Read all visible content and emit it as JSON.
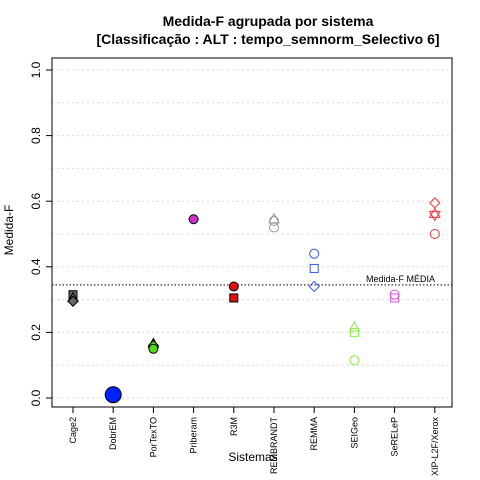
{
  "chart_data": {
    "type": "scatter",
    "title": "Medida-F agrupada por sistema",
    "subtitle": "[Classificação : ALT : tempo_semnorm_Selectivo 6]",
    "xlabel": "Sistemas",
    "ylabel": "Medida-F",
    "ylim": [
      0,
      1
    ],
    "yticks": [
      "0.0",
      "0.2",
      "0.4",
      "0.6",
      "0.8",
      "1.0"
    ],
    "grid": "horizontal dotted",
    "categories": [
      "Cage2",
      "DobrEM",
      "PorTexTO",
      "Priberam",
      "R3M",
      "REMBRANDT",
      "REMMA",
      "SEIGeo",
      "SeRELeP",
      "XIP-L2F/Xerox"
    ],
    "reference_line": {
      "label": "Medida-F MÉDIA",
      "value": 0.345
    },
    "points": [
      {
        "category": "Cage2",
        "value": 0.315,
        "shape": "square",
        "color": "#666666",
        "filled": true
      },
      {
        "category": "Cage2",
        "value": 0.305,
        "shape": "triangle",
        "color": "#666666",
        "filled": true
      },
      {
        "category": "Cage2",
        "value": 0.295,
        "shape": "diamond",
        "color": "#666666",
        "filled": true
      },
      {
        "category": "DobrEM",
        "value": 0.01,
        "shape": "circle-large",
        "color": "#0022ff",
        "filled": true
      },
      {
        "category": "PorTexTO",
        "value": 0.165,
        "shape": "triangle",
        "color": "#55dd11",
        "filled": true
      },
      {
        "category": "PorTexTO",
        "value": 0.16,
        "shape": "diamond",
        "color": "#55dd11",
        "filled": true
      },
      {
        "category": "PorTexTO",
        "value": 0.15,
        "shape": "circle",
        "color": "#55dd11",
        "filled": true
      },
      {
        "category": "Priberam",
        "value": 0.545,
        "shape": "circle",
        "color": "#cc33cc",
        "filled": true
      },
      {
        "category": "R3M",
        "value": 0.34,
        "shape": "circle",
        "color": "#dd1111",
        "filled": true
      },
      {
        "category": "R3M",
        "value": 0.305,
        "shape": "square",
        "color": "#dd1111",
        "filled": true
      },
      {
        "category": "REMBRANDT",
        "value": 0.545,
        "shape": "triangle",
        "color": "#999999",
        "filled": false
      },
      {
        "category": "REMBRANDT",
        "value": 0.54,
        "shape": "circle",
        "color": "#999999",
        "filled": false
      },
      {
        "category": "REMBRANDT",
        "value": 0.52,
        "shape": "circle",
        "color": "#999999",
        "filled": false
      },
      {
        "category": "REMMA",
        "value": 0.44,
        "shape": "circle",
        "color": "#3355ff",
        "filled": false
      },
      {
        "category": "REMMA",
        "value": 0.395,
        "shape": "square",
        "color": "#3355ff",
        "filled": false
      },
      {
        "category": "REMMA",
        "value": 0.34,
        "shape": "diamond",
        "color": "#3355ff",
        "filled": false
      },
      {
        "category": "SEIGeo",
        "value": 0.215,
        "shape": "triangle",
        "color": "#88ee44",
        "filled": false
      },
      {
        "category": "SEIGeo",
        "value": 0.2,
        "shape": "square",
        "color": "#88ee44",
        "filled": false
      },
      {
        "category": "SEIGeo",
        "value": 0.115,
        "shape": "circle",
        "color": "#88ee44",
        "filled": false
      },
      {
        "category": "SeRELeP",
        "value": 0.315,
        "shape": "circle",
        "color": "#dd55dd",
        "filled": false
      },
      {
        "category": "SeRELeP",
        "value": 0.305,
        "shape": "square",
        "color": "#dd55dd",
        "filled": false
      },
      {
        "category": "XIP-L2F/Xerox",
        "value": 0.595,
        "shape": "diamond",
        "color": "#ee3333",
        "filled": false
      },
      {
        "category": "XIP-L2F/Xerox",
        "value": 0.56,
        "shape": "star",
        "color": "#ee3333",
        "filled": false
      },
      {
        "category": "XIP-L2F/Xerox",
        "value": 0.5,
        "shape": "circle",
        "color": "#ee3333",
        "filled": false
      }
    ]
  }
}
